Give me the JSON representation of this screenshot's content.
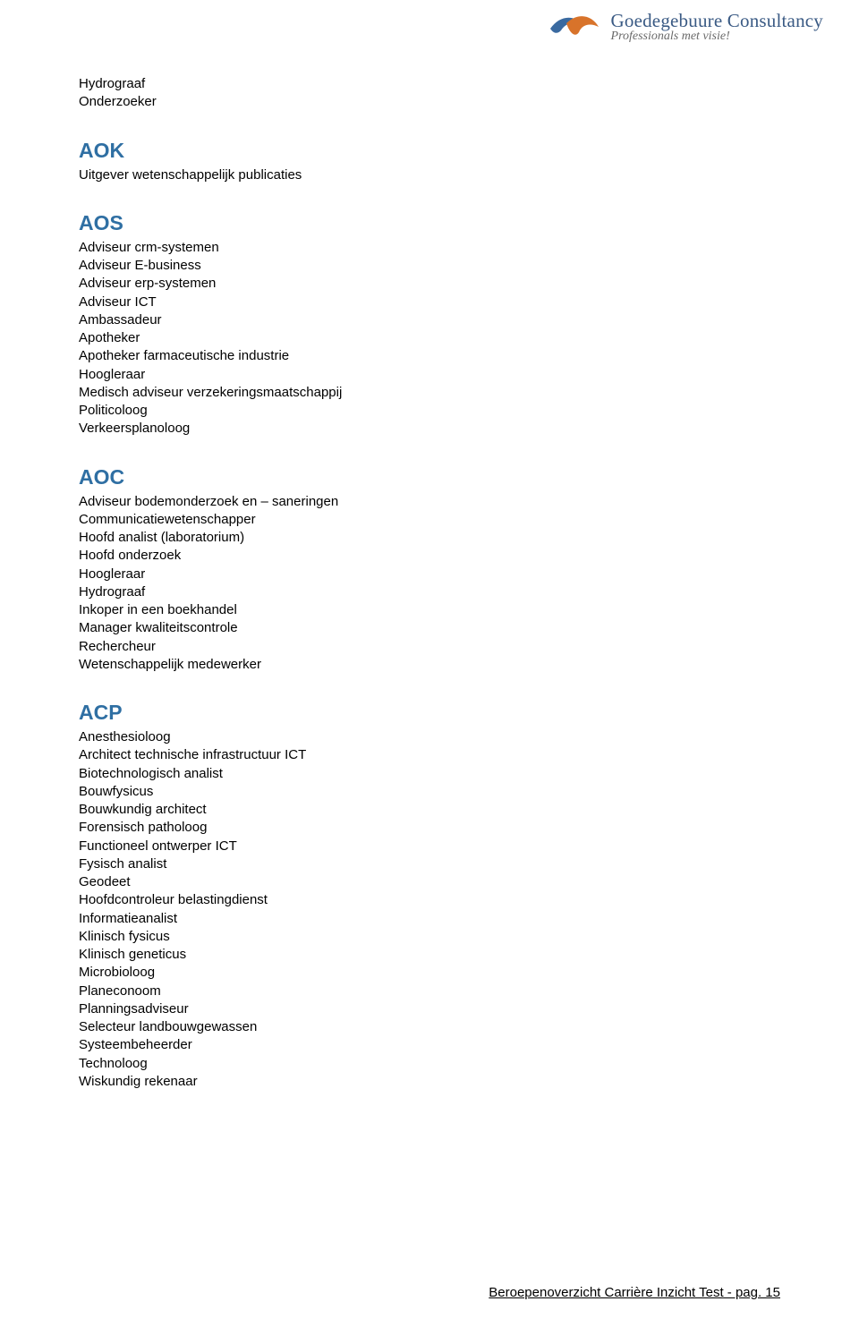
{
  "logo": {
    "company": "Goedegebuure Consultancy",
    "tagline": "Professionals met visie!",
    "company_color": "#3a5a84",
    "tagline_color": "#6a6a6a",
    "bird_blue": "#3a6aa0",
    "bird_orange": "#d8732a"
  },
  "heading_color": "#2f6fa3",
  "text_color": "#000000",
  "background_color": "#ffffff",
  "pre_items": [
    "Hydrograaf",
    "Onderzoeker"
  ],
  "sections": [
    {
      "code": "AOK",
      "items": [
        "Uitgever wetenschappelijk publicaties"
      ]
    },
    {
      "code": "AOS",
      "items": [
        "Adviseur crm-systemen",
        "Adviseur E-business",
        "Adviseur erp-systemen",
        "Adviseur ICT",
        "Ambassadeur",
        "Apotheker",
        "Apotheker farmaceutische industrie",
        "Hoogleraar",
        "Medisch adviseur verzekeringsmaatschappij",
        "Politicoloog",
        "Verkeersplanoloog"
      ]
    },
    {
      "code": "AOC",
      "items": [
        "Adviseur bodemonderzoek en – saneringen",
        "Communicatiewetenschapper",
        "Hoofd analist (laboratorium)",
        "Hoofd onderzoek",
        "Hoogleraar",
        "Hydrograaf",
        "Inkoper in een boekhandel",
        "Manager kwaliteitscontrole",
        "Rechercheur",
        "Wetenschappelijk medewerker"
      ]
    },
    {
      "code": "ACP",
      "items": [
        "Anesthesioloog",
        "Architect technische infrastructuur ICT",
        "Biotechnologisch analist",
        "Bouwfysicus",
        "Bouwkundig architect",
        "Forensisch patholoog",
        "Functioneel ontwerper ICT",
        "Fysisch analist",
        "Geodeet",
        "Hoofdcontroleur belastingdienst",
        "Informatieanalist",
        "Klinisch fysicus",
        "Klinisch geneticus",
        "Microbioloog",
        "Planeconoom",
        "Planningsadviseur",
        "Selecteur landbouwgewassen",
        "Systeembeheerder",
        "Technoloog",
        "Wiskundig rekenaar"
      ]
    }
  ],
  "footer": "Beroepenoverzicht Carrière Inzicht Test - pag. 15"
}
